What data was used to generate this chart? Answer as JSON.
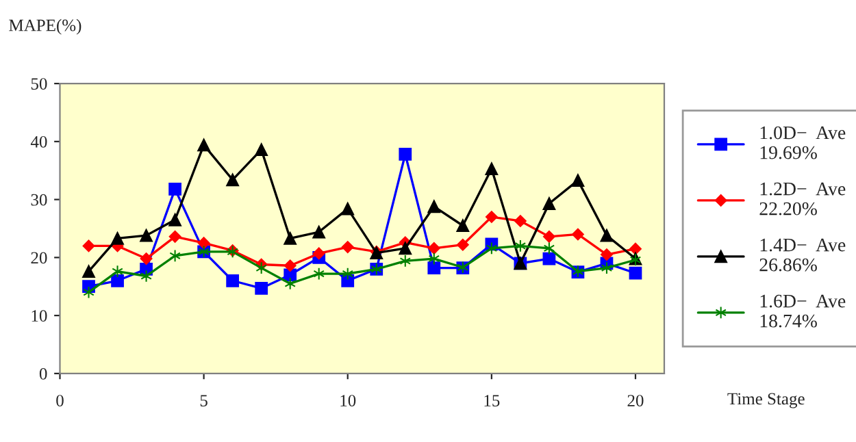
{
  "chart_data": {
    "type": "line",
    "ylabel": "MAPE(%)",
    "xlabel": "Time Stage",
    "x": [
      1,
      2,
      3,
      4,
      5,
      6,
      7,
      8,
      9,
      10,
      11,
      12,
      13,
      14,
      15,
      16,
      17,
      18,
      19,
      20
    ],
    "xlim": [
      0,
      21
    ],
    "xticks": [
      0,
      5,
      10,
      15,
      20
    ],
    "ylim": [
      0,
      50
    ],
    "yticks": [
      0,
      10,
      20,
      30,
      40,
      50
    ],
    "grid": false,
    "legend": "right",
    "series": [
      {
        "name": "1.0D−  Ave\n19.69%",
        "color": "#0000ff",
        "marker": "square",
        "values": [
          15,
          16,
          18,
          31.8,
          21,
          16,
          14.7,
          17,
          20,
          16,
          18,
          37.8,
          18.2,
          18.2,
          22.3,
          19,
          19.8,
          17.5,
          19,
          17.3
        ]
      },
      {
        "name": "1.2D−  Ave\n22.20%",
        "color": "#ff0000",
        "marker": "diamond",
        "values": [
          22,
          22,
          19.8,
          23.6,
          22.5,
          21.2,
          18.8,
          18.6,
          20.7,
          21.8,
          21,
          22.6,
          21.6,
          22.2,
          27,
          26.3,
          23.6,
          24,
          20.5,
          21.5
        ]
      },
      {
        "name": "1.4D−  Ave\n26.86%",
        "color": "#000000",
        "marker": "triangle",
        "values": [
          17.6,
          23.3,
          23.8,
          26.5,
          39.4,
          33.4,
          38.6,
          23.3,
          24.4,
          28.4,
          20.8,
          21.6,
          28.8,
          25.5,
          35.3,
          19,
          29.3,
          33.3,
          23.8,
          19.8
        ]
      },
      {
        "name": "1.6D−  Ave\n18.74%",
        "color": "#008000",
        "marker": "cross",
        "values": [
          14,
          17.6,
          16.8,
          20.3,
          21,
          21,
          18.2,
          15.5,
          17.2,
          17.2,
          18,
          19.4,
          19.8,
          18.3,
          21.6,
          22,
          21.6,
          17.6,
          18.2,
          19.6
        ]
      }
    ]
  }
}
